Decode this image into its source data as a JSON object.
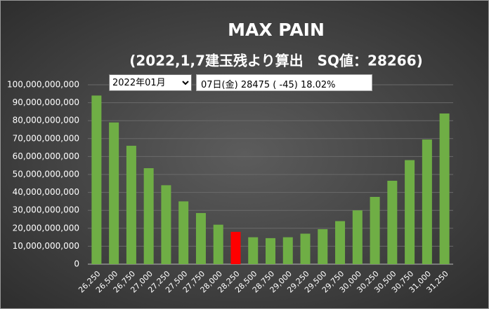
{
  "chart_data": {
    "type": "bar",
    "title": "MAX PAIN",
    "subtitle": "(2022,1,7建玉残より算出　SQ値：28266)",
    "categories": [
      "26,250",
      "26,500",
      "26,750",
      "27,000",
      "27,250",
      "27,500",
      "27,750",
      "28,000",
      "28,250",
      "28,500",
      "28,750",
      "29,000",
      "29,250",
      "29,500",
      "29,750",
      "30,000",
      "30,250",
      "30,500",
      "30,750",
      "31,000",
      "31,250"
    ],
    "values": [
      94000000000,
      79000000000,
      66000000000,
      53500000000,
      44000000000,
      35000000000,
      28500000000,
      22000000000,
      18000000000,
      15000000000,
      14500000000,
      15000000000,
      17000000000,
      19500000000,
      24000000000,
      30000000000,
      37500000000,
      46500000000,
      58000000000,
      69500000000,
      84000000000
    ],
    "bar_colors": [
      "#6fae45",
      "#6fae45",
      "#6fae45",
      "#6fae45",
      "#6fae45",
      "#6fae45",
      "#6fae45",
      "#6fae45",
      "#ff0000",
      "#6fae45",
      "#6fae45",
      "#6fae45",
      "#6fae45",
      "#6fae45",
      "#6fae45",
      "#6fae45",
      "#6fae45",
      "#6fae45",
      "#6fae45",
      "#6fae45",
      "#6fae45"
    ],
    "ylim": [
      0,
      100000000000
    ],
    "yticks": [
      0,
      {
        "value": 10000000000,
        "label": "10,000,000,000"
      },
      {
        "value": 20000000000,
        "label": "20,000,000,000"
      },
      {
        "value": 30000000000,
        "label": "30,000,000,000"
      },
      {
        "value": 40000000000,
        "label": "40,000,000,000"
      },
      {
        "value": 50000000000,
        "label": "50,000,000,000"
      },
      {
        "value": 60000000000,
        "label": "60,000,000,000"
      },
      {
        "value": 70000000000,
        "label": "70,000,000,000"
      },
      {
        "value": 80000000000,
        "label": "80,000,000,000"
      },
      {
        "value": 90000000000,
        "label": "90,000,000,000"
      },
      {
        "value": 100000000000,
        "label": "100,000,000,000"
      }
    ],
    "grid": true
  },
  "controls": {
    "month": "2022年01月",
    "info": "07日(金) 28475 ( -45) 18.02%"
  }
}
